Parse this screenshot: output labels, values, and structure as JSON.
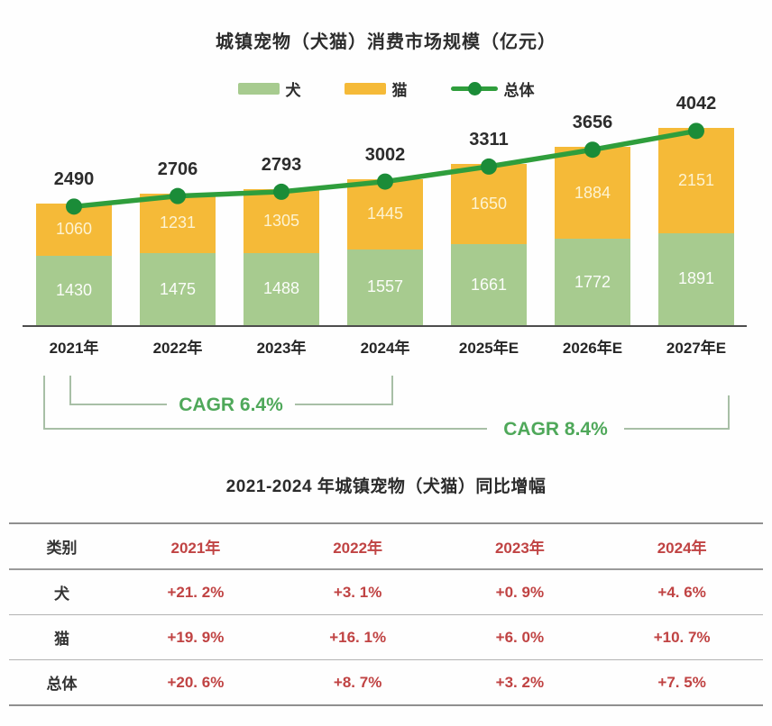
{
  "chart_data": {
    "type": "bar",
    "subtype": "stacked-bars-with-total-line",
    "title": "城镇宠物（犬猫）消费市场规模（亿元）",
    "categories": [
      "2021年",
      "2022年",
      "2023年",
      "2024年",
      "2025年E",
      "2026年E",
      "2027年E"
    ],
    "series": [
      {
        "name": "犬",
        "type": "bar-stack",
        "color": "#a7cb8f",
        "values": [
          1430,
          1475,
          1488,
          1557,
          1661,
          1772,
          1891
        ]
      },
      {
        "name": "猫",
        "type": "bar-stack",
        "color": "#f5ba38",
        "values": [
          1060,
          1231,
          1305,
          1445,
          1650,
          1884,
          2151
        ]
      },
      {
        "name": "总体",
        "type": "line",
        "color": "#2f9e3c",
        "dot_color": "#1b8c38",
        "values": [
          2490,
          2706,
          2793,
          3002,
          3311,
          3656,
          4042
        ]
      }
    ],
    "ylim": [
      0,
      4400
    ],
    "grid": false,
    "legend_position": "top",
    "annotations": [
      {
        "label": "CAGR 6.4%",
        "from": "2021年",
        "to": "2024年"
      },
      {
        "label": "CAGR 8.4%",
        "from": "2021年",
        "to": "2027年E"
      }
    ]
  },
  "colors": {
    "cagr_green": "#4fa85a",
    "bracket_line": "#a8bfa6",
    "table_red": "#c04343",
    "axis_line": "#4d4d4d"
  },
  "table": {
    "title": "2021-2024 年城镇宠物（犬猫）同比增幅",
    "columns": [
      "类别",
      "2021年",
      "2022年",
      "2023年",
      "2024年"
    ],
    "rows": [
      {
        "label": "犬",
        "values": [
          "+21. 2%",
          "+3. 1%",
          "+0. 9%",
          "+4. 6%"
        ]
      },
      {
        "label": "猫",
        "values": [
          "+19. 9%",
          "+16. 1%",
          "+6. 0%",
          "+10. 7%"
        ]
      },
      {
        "label": "总体",
        "values": [
          "+20. 6%",
          "+8. 7%",
          "+3. 2%",
          "+7. 5%"
        ]
      }
    ]
  }
}
